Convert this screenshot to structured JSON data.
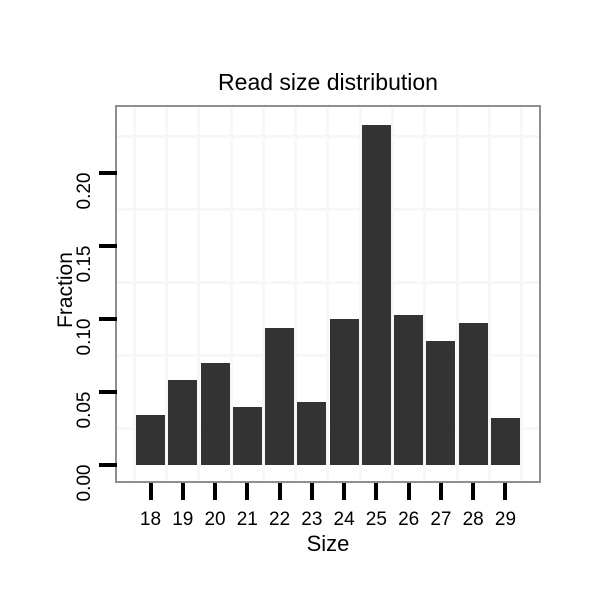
{
  "chart_data": {
    "type": "bar",
    "title": "Read size distribution",
    "xlabel": "Size",
    "ylabel": "Fraction",
    "categories": [
      18,
      19,
      20,
      21,
      22,
      23,
      24,
      25,
      26,
      27,
      28,
      29
    ],
    "values": [
      0.034,
      0.058,
      0.07,
      0.04,
      0.094,
      0.043,
      0.1,
      0.233,
      0.103,
      0.085,
      0.097,
      0.032
    ],
    "x_tick_labels": [
      "18",
      "19",
      "20",
      "21",
      "22",
      "23",
      "24",
      "25",
      "26",
      "27",
      "28",
      "29"
    ],
    "y_tick_values": [
      0.0,
      0.05,
      0.1,
      0.15,
      0.2
    ],
    "y_tick_labels": [
      "0.00",
      "0.05",
      "0.10",
      "0.15",
      "0.20"
    ],
    "ylim": [
      -0.012,
      0.245
    ],
    "bar_width_fraction": 0.9,
    "grid": "faint minor gridlines only (half-step positions), no major gridlines visible",
    "legend": "none",
    "colors": {
      "bar": "#333333",
      "panel_border": "#8f8f8f",
      "gridline": "#f7f7f7",
      "text": "#000000",
      "background": "#ffffff"
    }
  }
}
